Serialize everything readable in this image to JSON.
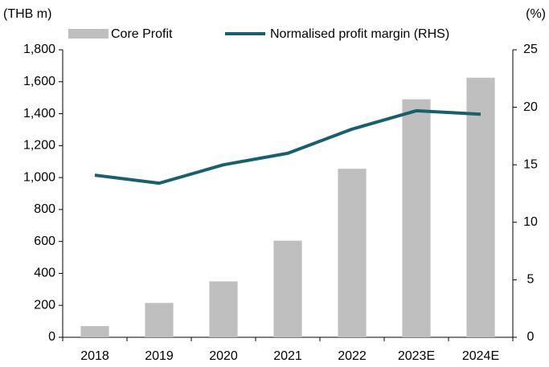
{
  "chart_data": {
    "type": "bar_line",
    "y_label": "(THB m)",
    "y2_label": "(%)",
    "categories": [
      "2018",
      "2019",
      "2020",
      "2021",
      "2022",
      "2023E",
      "2024E"
    ],
    "series": [
      {
        "name": "Core Profit",
        "type": "bar",
        "color": "#bfbfbf",
        "values": [
          70,
          215,
          350,
          605,
          1055,
          1490,
          1625
        ]
      },
      {
        "name": "Normalised profit margin (RHS)",
        "type": "line",
        "axis": "y2",
        "color": "#17606e",
        "values": [
          14.1,
          13.4,
          15.0,
          16.0,
          18.1,
          19.7,
          19.4
        ]
      }
    ],
    "ylim": [
      0,
      1800
    ],
    "yticks": [
      0,
      200,
      400,
      600,
      800,
      {
        "value": 1000,
        "label": "1,000"
      },
      {
        "value": 1200,
        "label": "1,200"
      },
      {
        "value": 1400,
        "label": "1,400"
      },
      {
        "value": 1600,
        "label": "1,600"
      },
      {
        "value": 1800,
        "label": "1,800"
      }
    ],
    "y2lim": [
      0,
      25
    ],
    "y2ticks": [
      0,
      5,
      10,
      15,
      20,
      25
    ],
    "grid": false
  }
}
